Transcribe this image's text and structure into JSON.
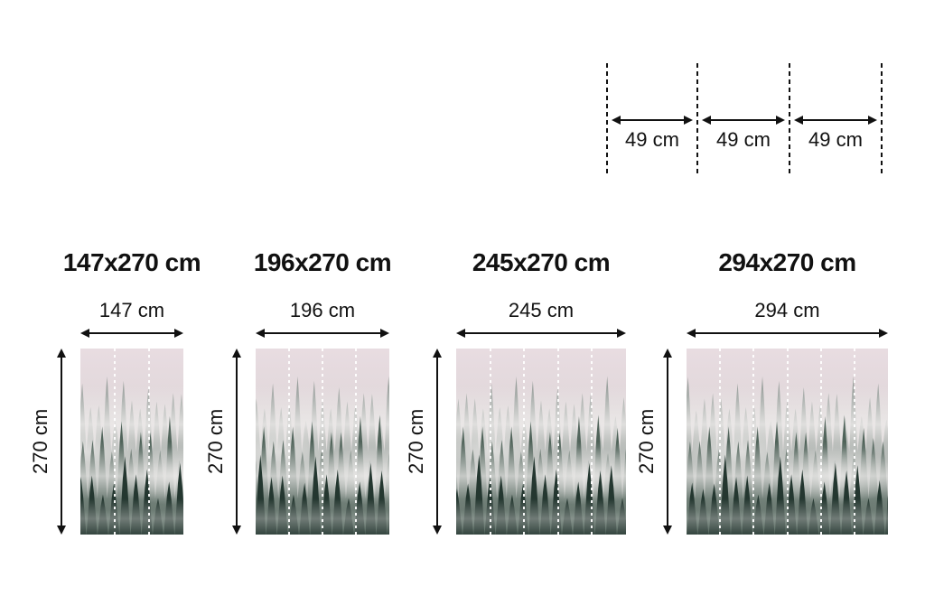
{
  "canvas": {
    "background": "#ffffff",
    "ink": "#111111"
  },
  "top_diagram": {
    "labels": [
      "49 cm",
      "49 cm",
      "49 cm"
    ]
  },
  "sizes": [
    {
      "title": "147x270 cm",
      "width_label": "147 cm",
      "height_label": "270 cm",
      "panels": 3
    },
    {
      "title": "196x270 cm",
      "width_label": "196 cm",
      "height_label": "270 cm",
      "panels": 4
    },
    {
      "title": "245x270 cm",
      "width_label": "245 cm",
      "height_label": "270 cm",
      "panels": 5
    },
    {
      "title": "294x270 cm",
      "width_label": "294 cm",
      "height_label": "270 cm",
      "panels": 6
    }
  ],
  "mural": {
    "colors": {
      "sky_top": "#e8dce1",
      "sky_mid": "#ddd5d7",
      "sky_bottom": "#c9c8c5",
      "trees_back": "#5d7168",
      "trees_mid": "#3f544a",
      "trees_front": "#243730",
      "fog": "#eceae9",
      "separator": "#ffffff"
    }
  }
}
